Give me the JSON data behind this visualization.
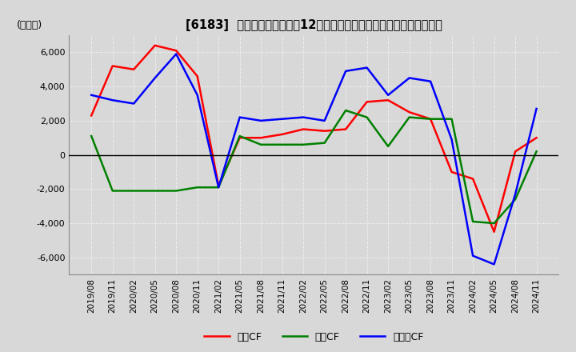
{
  "title": "[6183]  キャッシュフローの12か月移動合計の対前年同期増減額の推移",
  "ylabel": "(百万円)",
  "ylim": [
    -7000,
    7000
  ],
  "yticks": [
    -6000,
    -4000,
    -2000,
    0,
    2000,
    4000,
    6000
  ],
  "legend": [
    "営業CF",
    "投資CF",
    "フリーCF"
  ],
  "colors": {
    "eigyo": "#ff0000",
    "toshi": "#008000",
    "free": "#0000ff"
  },
  "dates": [
    "2019/08",
    "2019/11",
    "2020/02",
    "2020/05",
    "2020/08",
    "2020/11",
    "2021/02",
    "2021/05",
    "2021/08",
    "2021/11",
    "2022/02",
    "2022/05",
    "2022/08",
    "2022/11",
    "2023/02",
    "2023/05",
    "2023/08",
    "2023/11",
    "2024/02",
    "2024/05",
    "2024/08",
    "2024/11"
  ],
  "eigyo_cf": [
    2300,
    5200,
    5000,
    6400,
    6100,
    4600,
    -1800,
    1000,
    1000,
    1200,
    1500,
    1400,
    1500,
    3100,
    3200,
    2500,
    2100,
    -1000,
    -1400,
    -4500,
    200,
    1000
  ],
  "toshi_cf": [
    1100,
    -2100,
    -2100,
    -2100,
    -2100,
    -1900,
    -1900,
    1100,
    600,
    600,
    600,
    700,
    2600,
    2200,
    500,
    2200,
    2100,
    2100,
    -3900,
    -4000,
    -2600,
    200
  ],
  "free_cf": [
    3500,
    3200,
    3000,
    4500,
    5900,
    3500,
    -1900,
    2200,
    2000,
    2100,
    2200,
    2000,
    4900,
    5100,
    3500,
    4500,
    4300,
    900,
    -5900,
    -6400,
    -2300,
    2700
  ],
  "background_color": "#d8d8d8",
  "grid_color": "#ffffff",
  "line_width": 1.8,
  "zero_line_color": "#000000"
}
